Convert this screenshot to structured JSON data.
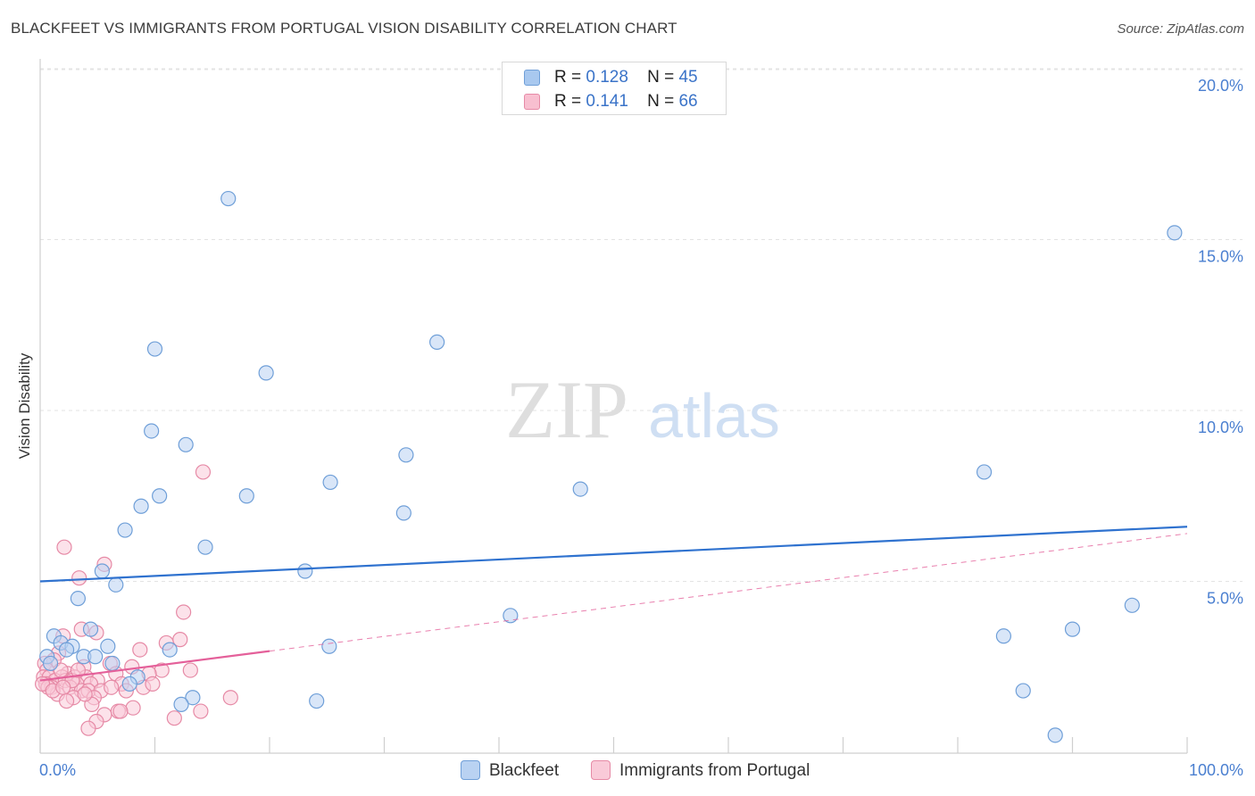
{
  "title": "BLACKFEET VS IMMIGRANTS FROM PORTUGAL VISION DISABILITY CORRELATION CHART",
  "source": "Source: ZipAtlas.com",
  "watermark": {
    "zip": "ZIP",
    "atlas": "atlas"
  },
  "stats": [
    {
      "r_label": "R =",
      "r_value": "0.128",
      "n_label": "N =",
      "n_value": "45",
      "color": "#a8c8ef",
      "border": "#6f9fd8"
    },
    {
      "r_label": "R =",
      "r_value": "0.141",
      "n_label": "N =",
      "n_value": "66",
      "color": "#f8bfd0",
      "border": "#e68aa6"
    }
  ],
  "legend": [
    {
      "label": "Blackfeet",
      "color": "#b9d2f2",
      "border": "#6f9fd8"
    },
    {
      "label": "Immigrants from Portugal",
      "color": "#f9cad8",
      "border": "#e68aa6"
    }
  ],
  "chart_data": {
    "type": "scatter",
    "title": "BLACKFEET VS IMMIGRANTS FROM PORTUGAL VISION DISABILITY CORRELATION CHART",
    "xlabel": "",
    "ylabel": "Vision Disability",
    "xlim": [
      0,
      100
    ],
    "ylim": [
      0,
      20
    ],
    "x_tick_labels": [
      "0.0%",
      "100.0%"
    ],
    "y_ticks": [
      5,
      10,
      15,
      20
    ],
    "y_tick_labels": [
      "5.0%",
      "10.0%",
      "15.0%",
      "20.0%"
    ],
    "grid": true,
    "series": [
      {
        "name": "Blackfeet",
        "color": "#6f9fd8",
        "fill": "#b9d2f2",
        "line_color": "#2f72cf",
        "trend": {
          "x0": 0,
          "y0": 5.0,
          "x1": 100,
          "y1": 6.6,
          "dashed_from": null
        },
        "points": [
          [
            16.4,
            16.2
          ],
          [
            98.9,
            15.2
          ],
          [
            10.0,
            11.8
          ],
          [
            34.6,
            12.0
          ],
          [
            19.7,
            11.1
          ],
          [
            9.7,
            9.4
          ],
          [
            12.7,
            9.0
          ],
          [
            31.9,
            8.7
          ],
          [
            82.3,
            8.2
          ],
          [
            25.3,
            7.9
          ],
          [
            47.1,
            7.7
          ],
          [
            10.4,
            7.5
          ],
          [
            18.0,
            7.5
          ],
          [
            8.8,
            7.2
          ],
          [
            31.7,
            7.0
          ],
          [
            7.4,
            6.5
          ],
          [
            14.4,
            6.0
          ],
          [
            5.4,
            5.3
          ],
          [
            23.1,
            5.3
          ],
          [
            6.6,
            4.9
          ],
          [
            3.3,
            4.5
          ],
          [
            95.2,
            4.3
          ],
          [
            41.0,
            4.0
          ],
          [
            4.4,
            3.6
          ],
          [
            90.0,
            3.6
          ],
          [
            84.0,
            3.4
          ],
          [
            1.2,
            3.4
          ],
          [
            1.8,
            3.2
          ],
          [
            2.8,
            3.1
          ],
          [
            5.9,
            3.1
          ],
          [
            25.2,
            3.1
          ],
          [
            11.3,
            3.0
          ],
          [
            2.3,
            3.0
          ],
          [
            0.6,
            2.8
          ],
          [
            3.8,
            2.8
          ],
          [
            4.8,
            2.8
          ],
          [
            6.3,
            2.6
          ],
          [
            0.9,
            2.6
          ],
          [
            8.5,
            2.2
          ],
          [
            7.8,
            2.0
          ],
          [
            13.3,
            1.6
          ],
          [
            12.3,
            1.4
          ],
          [
            24.1,
            1.5
          ],
          [
            85.7,
            1.8
          ],
          [
            88.5,
            0.5
          ]
        ]
      },
      {
        "name": "Immigrants from Portugal",
        "color": "#e68aa6",
        "fill": "#f9cad8",
        "line_color": "#e4609a",
        "trend": {
          "x0": 0,
          "y0": 2.1,
          "x1": 100,
          "y1": 6.4,
          "dashed_from": 20
        },
        "points": [
          [
            14.2,
            8.2
          ],
          [
            2.1,
            6.0
          ],
          [
            5.6,
            5.5
          ],
          [
            3.4,
            5.1
          ],
          [
            12.5,
            4.1
          ],
          [
            3.6,
            3.6
          ],
          [
            4.9,
            3.5
          ],
          [
            2.0,
            3.4
          ],
          [
            11.0,
            3.2
          ],
          [
            12.2,
            3.3
          ],
          [
            8.7,
            3.0
          ],
          [
            1.6,
            2.9
          ],
          [
            1.2,
            2.7
          ],
          [
            0.4,
            2.6
          ],
          [
            6.1,
            2.6
          ],
          [
            3.8,
            2.5
          ],
          [
            8.0,
            2.5
          ],
          [
            10.6,
            2.4
          ],
          [
            13.1,
            2.4
          ],
          [
            0.6,
            2.4
          ],
          [
            2.4,
            2.3
          ],
          [
            6.6,
            2.3
          ],
          [
            9.5,
            2.3
          ],
          [
            1.9,
            2.2
          ],
          [
            3.0,
            2.2
          ],
          [
            4.0,
            2.2
          ],
          [
            0.3,
            2.2
          ],
          [
            0.8,
            2.2
          ],
          [
            5.0,
            2.1
          ],
          [
            1.3,
            2.1
          ],
          [
            2.2,
            2.1
          ],
          [
            3.2,
            2.0
          ],
          [
            4.4,
            2.0
          ],
          [
            7.1,
            2.0
          ],
          [
            0.5,
            2.0
          ],
          [
            1.0,
            1.9
          ],
          [
            2.6,
            1.9
          ],
          [
            3.6,
            1.8
          ],
          [
            4.2,
            1.8
          ],
          [
            9.0,
            1.9
          ],
          [
            5.3,
            1.8
          ],
          [
            1.5,
            1.7
          ],
          [
            7.5,
            1.8
          ],
          [
            2.9,
            1.6
          ],
          [
            4.7,
            1.6
          ],
          [
            2.3,
            1.5
          ],
          [
            16.6,
            1.6
          ],
          [
            8.1,
            1.3
          ],
          [
            4.5,
            1.4
          ],
          [
            6.8,
            1.2
          ],
          [
            7.0,
            1.2
          ],
          [
            5.6,
            1.1
          ],
          [
            14.0,
            1.2
          ],
          [
            4.9,
            0.9
          ],
          [
            11.7,
            1.0
          ],
          [
            4.2,
            0.7
          ],
          [
            0.7,
            1.9
          ],
          [
            1.8,
            2.4
          ],
          [
            2.8,
            2.1
          ],
          [
            3.3,
            2.4
          ],
          [
            6.2,
            1.9
          ],
          [
            9.8,
            2.0
          ],
          [
            0.2,
            2.0
          ],
          [
            1.1,
            1.8
          ],
          [
            2.0,
            1.9
          ],
          [
            3.9,
            1.7
          ]
        ]
      }
    ]
  }
}
